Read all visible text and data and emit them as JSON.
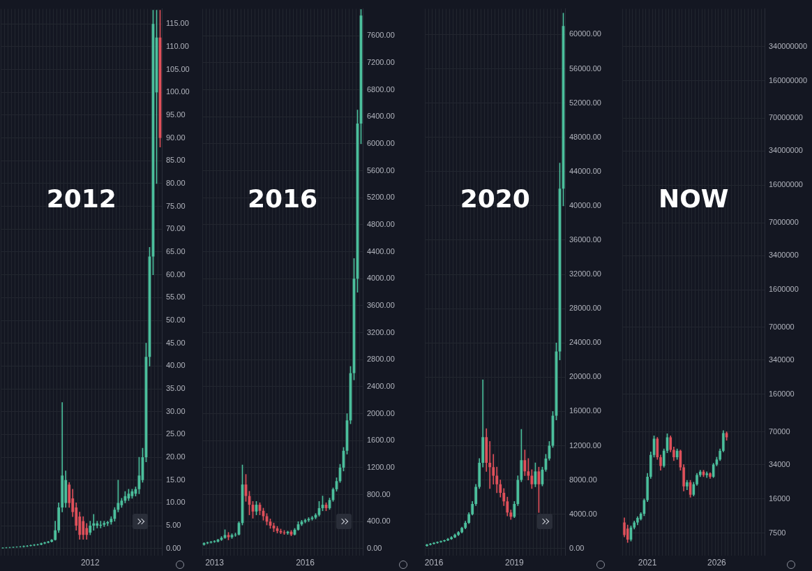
{
  "chart_data": [
    {
      "type": "candlestick",
      "title": "2012",
      "grid": true,
      "categories": [
        null,
        null,
        null,
        null,
        null,
        null,
        null,
        null,
        null,
        null,
        null,
        null,
        null,
        null,
        null,
        null,
        null,
        null,
        null,
        null,
        null,
        null,
        null,
        null,
        null,
        "2012",
        null,
        null,
        null,
        null,
        null,
        null,
        null,
        null,
        null,
        null,
        null,
        null,
        null,
        null,
        null,
        null,
        null,
        null,
        null,
        null
      ],
      "ohlc": [
        [
          0.1,
          0.2,
          0.05,
          0.15
        ],
        [
          0.15,
          0.25,
          0.1,
          0.2
        ],
        [
          0.2,
          0.3,
          0.15,
          0.25
        ],
        [
          0.25,
          0.35,
          0.2,
          0.3
        ],
        [
          0.3,
          0.4,
          0.25,
          0.35
        ],
        [
          0.35,
          0.5,
          0.3,
          0.4
        ],
        [
          0.4,
          0.6,
          0.3,
          0.5
        ],
        [
          0.5,
          0.7,
          0.4,
          0.6
        ],
        [
          0.6,
          0.8,
          0.5,
          0.7
        ],
        [
          0.7,
          0.9,
          0.6,
          0.8
        ],
        [
          0.8,
          1.0,
          0.7,
          0.9
        ],
        [
          0.9,
          1.2,
          0.8,
          1.1
        ],
        [
          1.1,
          1.4,
          1.0,
          1.3
        ],
        [
          1.3,
          1.6,
          1.2,
          1.5
        ],
        [
          1.5,
          2,
          1.4,
          1.9
        ],
        [
          1.9,
          6,
          1.8,
          4
        ],
        [
          4,
          10,
          3.5,
          9
        ],
        [
          9,
          32,
          8,
          16
        ],
        [
          10,
          17,
          9,
          15
        ],
        [
          14,
          14.5,
          9,
          10
        ],
        [
          11,
          13,
          7,
          8
        ],
        [
          9,
          10,
          4,
          5
        ],
        [
          7,
          8,
          2,
          3
        ],
        [
          6,
          7,
          2,
          3
        ],
        [
          4.5,
          5.5,
          2,
          3
        ],
        [
          3.5,
          6,
          3,
          5
        ],
        [
          5,
          7.5,
          4,
          5.5
        ],
        [
          5,
          6,
          4.5,
          5.5
        ],
        [
          5,
          6,
          4.5,
          5.2
        ],
        [
          5.2,
          6,
          4.8,
          5.6
        ],
        [
          5.5,
          6,
          5,
          5.8
        ],
        [
          5.8,
          7,
          5.3,
          6.5
        ],
        [
          6.5,
          9,
          6,
          8.5
        ],
        [
          8.5,
          15,
          8,
          10
        ],
        [
          9.5,
          11,
          9,
          10.5
        ],
        [
          10.5,
          12.5,
          10,
          11.5
        ],
        [
          11,
          13,
          10.5,
          12
        ],
        [
          11.5,
          13,
          11,
          12.5
        ],
        [
          12,
          13.5,
          11.5,
          13
        ],
        [
          13,
          20,
          12,
          16
        ],
        [
          15,
          22,
          14.5,
          20
        ],
        [
          20,
          45,
          19,
          42
        ],
        [
          42,
          66,
          40,
          64
        ],
        [
          64,
          118,
          60,
          115
        ],
        [
          100,
          118,
          80,
          112
        ],
        [
          112,
          118,
          88,
          90
        ]
      ],
      "colors": [
        "#4bbf9c",
        "#4bbf9c",
        "#4bbf9c",
        "#4bbf9c",
        "#4bbf9c",
        "#4bbf9c",
        "#4bbf9c",
        "#4bbf9c",
        "#4bbf9c",
        "#4bbf9c",
        "#4bbf9c",
        "#4bbf9c",
        "#4bbf9c",
        "#4bbf9c",
        "#4bbf9c",
        "#4bbf9c",
        "#4bbf9c",
        "#4bbf9c",
        "#4bbf9c",
        "#e0505a",
        "#e0505a",
        "#e0505a",
        "#e0505a",
        "#e0505a",
        "#e0505a",
        "#4bbf9c",
        "#4bbf9c",
        "#4bbf9c",
        "#4bbf9c",
        "#4bbf9c",
        "#4bbf9c",
        "#4bbf9c",
        "#4bbf9c",
        "#4bbf9c",
        "#4bbf9c",
        "#4bbf9c",
        "#4bbf9c",
        "#4bbf9c",
        "#4bbf9c",
        "#4bbf9c",
        "#4bbf9c",
        "#4bbf9c",
        "#4bbf9c",
        "#4bbf9c",
        "#4bbf9c",
        "#e0505a"
      ],
      "ylim": [
        -1.5,
        118.3
      ],
      "yticks": [
        {
          "value": 0,
          "label": "0.00"
        },
        {
          "value": 5,
          "label": "5.00"
        },
        {
          "value": 10,
          "label": "10.00"
        },
        {
          "value": 15,
          "label": "15.00"
        },
        {
          "value": 20,
          "label": "20.00"
        },
        {
          "value": 25,
          "label": "25.00"
        },
        {
          "value": 30,
          "label": "30.00"
        },
        {
          "value": 35,
          "label": "35.00"
        },
        {
          "value": 40,
          "label": "40.00"
        },
        {
          "value": 45,
          "label": "45.00"
        },
        {
          "value": 50,
          "label": "50.00"
        },
        {
          "value": 55,
          "label": "55.00"
        },
        {
          "value": 60,
          "label": "60.00"
        },
        {
          "value": 65,
          "label": "65.00"
        },
        {
          "value": 70,
          "label": "70.00"
        },
        {
          "value": 75,
          "label": "75.00"
        },
        {
          "value": 80,
          "label": "80.00"
        },
        {
          "value": 85,
          "label": "85.00"
        },
        {
          "value": 90,
          "label": "90.00"
        },
        {
          "value": 95,
          "label": "95.00"
        },
        {
          "value": 100,
          "label": "100.00"
        },
        {
          "value": 105,
          "label": "105.00"
        },
        {
          "value": 110,
          "label": "110.00"
        },
        {
          "value": 115,
          "label": "115.00"
        }
      ]
    },
    {
      "type": "candlestick",
      "title": "2016",
      "grid": true,
      "categories": [
        null,
        null,
        null,
        "2013",
        null,
        null,
        null,
        null,
        null,
        null,
        null,
        null,
        null,
        null,
        null,
        null,
        null,
        null,
        null,
        null,
        null,
        null,
        null,
        null,
        null,
        null,
        null,
        null,
        null,
        "2016",
        null,
        null,
        null,
        null,
        null,
        null,
        null,
        null,
        null,
        null,
        null,
        null,
        null,
        null,
        null,
        null
      ],
      "ohlc": [
        [
          60,
          90,
          50,
          80
        ],
        [
          80,
          100,
          70,
          90
        ],
        [
          90,
          110,
          80,
          100
        ],
        [
          100,
          120,
          90,
          110
        ],
        [
          105,
          140,
          95,
          130
        ],
        [
          130,
          180,
          120,
          160
        ],
        [
          160,
          280,
          150,
          200
        ],
        [
          200,
          240,
          130,
          170
        ],
        [
          170,
          220,
          150,
          200
        ],
        [
          200,
          230,
          180,
          210
        ],
        [
          210,
          400,
          200,
          380
        ],
        [
          380,
          1240,
          350,
          950
        ],
        [
          950,
          1100,
          700,
          780
        ],
        [
          780,
          850,
          500,
          650
        ],
        [
          650,
          700,
          450,
          550
        ],
        [
          550,
          700,
          500,
          650
        ],
        [
          650,
          680,
          500,
          560
        ],
        [
          560,
          600,
          420,
          480
        ],
        [
          480,
          520,
          350,
          400
        ],
        [
          400,
          440,
          300,
          340
        ],
        [
          340,
          380,
          250,
          300
        ],
        [
          300,
          330,
          230,
          260
        ],
        [
          260,
          290,
          220,
          240
        ],
        [
          240,
          270,
          210,
          230
        ],
        [
          230,
          260,
          210,
          250
        ],
        [
          250,
          270,
          190,
          210
        ],
        [
          210,
          300,
          200,
          280
        ],
        [
          280,
          400,
          270,
          360
        ],
        [
          360,
          420,
          340,
          400
        ],
        [
          400,
          440,
          380,
          420
        ],
        [
          420,
          460,
          400,
          440
        ],
        [
          440,
          480,
          420,
          460
        ],
        [
          460,
          520,
          440,
          500
        ],
        [
          500,
          700,
          480,
          600
        ],
        [
          600,
          780,
          560,
          650
        ],
        [
          650,
          680,
          560,
          600
        ],
        [
          600,
          750,
          580,
          720
        ],
        [
          720,
          900,
          700,
          880
        ],
        [
          880,
          1050,
          850,
          1000
        ],
        [
          1000,
          1250,
          980,
          1200
        ],
        [
          1200,
          1500,
          1150,
          1450
        ],
        [
          1450,
          2000,
          1400,
          1900
        ],
        [
          1900,
          2700,
          1850,
          2600
        ],
        [
          2600,
          4300,
          2500,
          4000
        ],
        [
          4000,
          6500,
          3800,
          6300
        ],
        [
          6300,
          7990,
          6000,
          7900
        ]
      ],
      "colors": [
        "#4bbf9c",
        "#4bbf9c",
        "#4bbf9c",
        "#4bbf9c",
        "#4bbf9c",
        "#4bbf9c",
        "#4bbf9c",
        "#e0505a",
        "#4bbf9c",
        "#4bbf9c",
        "#4bbf9c",
        "#4bbf9c",
        "#e0505a",
        "#e0505a",
        "#e0505a",
        "#4bbf9c",
        "#e0505a",
        "#e0505a",
        "#e0505a",
        "#e0505a",
        "#e0505a",
        "#e0505a",
        "#e0505a",
        "#e0505a",
        "#4bbf9c",
        "#e0505a",
        "#4bbf9c",
        "#4bbf9c",
        "#4bbf9c",
        "#4bbf9c",
        "#4bbf9c",
        "#4bbf9c",
        "#4bbf9c",
        "#4bbf9c",
        "#4bbf9c",
        "#e0505a",
        "#4bbf9c",
        "#4bbf9c",
        "#4bbf9c",
        "#4bbf9c",
        "#4bbf9c",
        "#4bbf9c",
        "#4bbf9c",
        "#4bbf9c",
        "#4bbf9c",
        "#4bbf9c"
      ],
      "ylim": [
        -100,
        8000
      ],
      "yticks": [
        {
          "value": 0,
          "label": "0.00"
        },
        {
          "value": 400,
          "label": "400.00"
        },
        {
          "value": 800,
          "label": "800.00"
        },
        {
          "value": 1200,
          "label": "1200.00"
        },
        {
          "value": 1600,
          "label": "1600.00"
        },
        {
          "value": 2000,
          "label": "2000.00"
        },
        {
          "value": 2400,
          "label": "2400.00"
        },
        {
          "value": 2800,
          "label": "2800.00"
        },
        {
          "value": 3200,
          "label": "3200.00"
        },
        {
          "value": 3600,
          "label": "3600.00"
        },
        {
          "value": 4000,
          "label": "4000.00"
        },
        {
          "value": 4400,
          "label": "4400.00"
        },
        {
          "value": 4800,
          "label": "4800.00"
        },
        {
          "value": 5200,
          "label": "5200.00"
        },
        {
          "value": 5600,
          "label": "5600.00"
        },
        {
          "value": 6000,
          "label": "6000.00"
        },
        {
          "value": 6400,
          "label": "6400.00"
        },
        {
          "value": 6800,
          "label": "6800.00"
        },
        {
          "value": 7200,
          "label": "7200.00"
        },
        {
          "value": 7600,
          "label": "7600.00"
        }
      ]
    },
    {
      "type": "candlestick",
      "title": "2020",
      "grid": true,
      "categories": [
        null,
        null,
        "2016",
        null,
        null,
        null,
        null,
        null,
        null,
        null,
        null,
        null,
        null,
        null,
        null,
        null,
        null,
        null,
        null,
        null,
        null,
        null,
        null,
        null,
        null,
        "2019",
        null,
        null,
        null,
        null,
        null,
        null,
        null,
        null,
        null,
        null,
        null,
        null,
        null,
        null
      ],
      "ohlc": [
        [
          300,
          500,
          250,
          450
        ],
        [
          450,
          600,
          400,
          550
        ],
        [
          550,
          700,
          500,
          650
        ],
        [
          650,
          800,
          600,
          750
        ],
        [
          750,
          900,
          700,
          850
        ],
        [
          850,
          1000,
          800,
          950
        ],
        [
          950,
          1200,
          900,
          1100
        ],
        [
          1100,
          1400,
          1050,
          1300
        ],
        [
          1300,
          1700,
          1250,
          1600
        ],
        [
          1600,
          2000,
          1500,
          1900
        ],
        [
          1900,
          2500,
          1800,
          2400
        ],
        [
          2400,
          3200,
          2300,
          3000
        ],
        [
          3000,
          4200,
          2900,
          4000
        ],
        [
          4000,
          5500,
          3900,
          5200
        ],
        [
          5200,
          7500,
          5000,
          7200
        ],
        [
          7200,
          10500,
          7000,
          10000
        ],
        [
          10000,
          19700,
          9500,
          13000
        ],
        [
          13000,
          14000,
          9000,
          10000
        ],
        [
          10000,
          12500,
          7000,
          9500
        ],
        [
          9500,
          11000,
          7500,
          8500
        ],
        [
          8500,
          9500,
          6500,
          7500
        ],
        [
          7500,
          8000,
          6000,
          6500
        ],
        [
          6500,
          7000,
          5000,
          5500
        ],
        [
          5500,
          6000,
          3800,
          4200
        ],
        [
          4200,
          4500,
          3400,
          3700
        ],
        [
          3700,
          5500,
          3600,
          5200
        ],
        [
          5200,
          8500,
          5000,
          8000
        ],
        [
          8000,
          13900,
          7800,
          10300
        ],
        [
          10300,
          11500,
          8500,
          9000
        ],
        [
          9000,
          10500,
          8000,
          8500
        ],
        [
          8500,
          9200,
          7000,
          7500
        ],
        [
          7500,
          10000,
          7200,
          9000
        ],
        [
          9000,
          9500,
          4200,
          7500
        ],
        [
          7500,
          9500,
          7300,
          9200
        ],
        [
          9200,
          11000,
          9000,
          10500
        ],
        [
          10500,
          12500,
          10300,
          12000
        ],
        [
          12000,
          16000,
          11800,
          15500
        ],
        [
          15500,
          24000,
          15000,
          23000
        ],
        [
          23000,
          45000,
          22000,
          42000
        ],
        [
          42000,
          62500,
          40000,
          61000
        ]
      ],
      "colors": [
        "#4bbf9c",
        "#4bbf9c",
        "#4bbf9c",
        "#4bbf9c",
        "#4bbf9c",
        "#4bbf9c",
        "#4bbf9c",
        "#4bbf9c",
        "#4bbf9c",
        "#4bbf9c",
        "#4bbf9c",
        "#4bbf9c",
        "#4bbf9c",
        "#4bbf9c",
        "#4bbf9c",
        "#4bbf9c",
        "#4bbf9c",
        "#e0505a",
        "#e0505a",
        "#e0505a",
        "#e0505a",
        "#e0505a",
        "#e0505a",
        "#e0505a",
        "#e0505a",
        "#4bbf9c",
        "#4bbf9c",
        "#4bbf9c",
        "#e0505a",
        "#e0505a",
        "#e0505a",
        "#4bbf9c",
        "#e0505a",
        "#4bbf9c",
        "#4bbf9c",
        "#4bbf9c",
        "#4bbf9c",
        "#4bbf9c",
        "#4bbf9c",
        "#4bbf9c"
      ],
      "ylim": [
        -800,
        63000
      ],
      "yticks": [
        {
          "value": 0,
          "label": "0.00"
        },
        {
          "value": 4000,
          "label": "4000.00"
        },
        {
          "value": 8000,
          "label": "8000.00"
        },
        {
          "value": 12000,
          "label": "12000.00"
        },
        {
          "value": 16000,
          "label": "16000.00"
        },
        {
          "value": 20000,
          "label": "20000.00"
        },
        {
          "value": 24000,
          "label": "24000.00"
        },
        {
          "value": 28000,
          "label": "28000.00"
        },
        {
          "value": 32000,
          "label": "32000.00"
        },
        {
          "value": 36000,
          "label": "36000.00"
        },
        {
          "value": 40000,
          "label": "40000.00"
        },
        {
          "value": 44000,
          "label": "44000.00"
        },
        {
          "value": 48000,
          "label": "48000.00"
        },
        {
          "value": 52000,
          "label": "52000.00"
        },
        {
          "value": 56000,
          "label": "56000.00"
        },
        {
          "value": 60000,
          "label": "60000.00"
        }
      ]
    },
    {
      "type": "candlestick",
      "title": "NOW",
      "grid": true,
      "log": true,
      "categories": [
        null,
        null,
        null,
        null,
        null,
        null,
        null,
        "2021",
        null,
        null,
        null,
        null,
        null,
        null,
        null,
        null,
        null,
        null,
        null,
        null,
        null,
        null,
        null,
        null,
        null,
        null,
        null,
        null,
        "2026",
        null,
        null,
        null,
        null,
        null,
        null,
        null,
        null,
        null,
        null,
        null,
        null,
        null,
        null
      ],
      "ohlc": [
        [
          9500,
          10500,
          6900,
          7200
        ],
        [
          8300,
          9000,
          6100,
          6500
        ],
        [
          6500,
          8800,
          6300,
          8500
        ],
        [
          8500,
          9800,
          8200,
          9500
        ],
        [
          9500,
          10800,
          9000,
          10500
        ],
        [
          10200,
          11800,
          10000,
          11500
        ],
        [
          11500,
          16000,
          11000,
          15500
        ],
        [
          15500,
          28000,
          15000,
          26000
        ],
        [
          26000,
          45000,
          25000,
          42000
        ],
        [
          42000,
          64000,
          40000,
          60000
        ],
        [
          60000,
          62000,
          38000,
          40000
        ],
        [
          40000,
          42000,
          30000,
          33000
        ],
        [
          33000,
          48000,
          32000,
          46000
        ],
        [
          46000,
          67000,
          44000,
          62000
        ],
        [
          62000,
          64000,
          45000,
          47000
        ],
        [
          47000,
          50000,
          37000,
          40000
        ],
        [
          40000,
          48000,
          38000,
          46000
        ],
        [
          46000,
          47000,
          30000,
          32000
        ],
        [
          32000,
          34000,
          19000,
          21000
        ],
        [
          21000,
          24000,
          19500,
          23000
        ],
        [
          23000,
          24000,
          16500,
          17500
        ],
        [
          17500,
          23000,
          17000,
          22000
        ],
        [
          22000,
          28000,
          21500,
          27000
        ],
        [
          27000,
          30000,
          26000,
          29000
        ],
        [
          29000,
          30000,
          26000,
          27000
        ],
        [
          27000,
          29000,
          25500,
          28000
        ],
        [
          28000,
          28500,
          25000,
          26000
        ],
        [
          26000,
          35000,
          25500,
          34000
        ],
        [
          34000,
          40000,
          33000,
          38000
        ],
        [
          38000,
          48000,
          37000,
          46000
        ],
        [
          46000,
          72000,
          45000,
          68000
        ],
        [
          68000,
          70000,
          58000,
          62000
        ],
        null,
        null,
        null,
        null,
        null,
        null,
        null,
        null,
        null,
        null,
        null
      ],
      "colors": [
        "#e0505a",
        "#e0505a",
        "#4bbf9c",
        "#4bbf9c",
        "#4bbf9c",
        "#4bbf9c",
        "#4bbf9c",
        "#4bbf9c",
        "#4bbf9c",
        "#4bbf9c",
        "#e0505a",
        "#e0505a",
        "#4bbf9c",
        "#4bbf9c",
        "#e0505a",
        "#e0505a",
        "#4bbf9c",
        "#e0505a",
        "#e0505a",
        "#4bbf9c",
        "#e0505a",
        "#4bbf9c",
        "#4bbf9c",
        "#4bbf9c",
        "#e0505a",
        "#4bbf9c",
        "#e0505a",
        "#4bbf9c",
        "#4bbf9c",
        "#4bbf9c",
        "#4bbf9c",
        "#e0505a",
        null,
        null,
        null,
        null,
        null,
        null,
        null,
        null,
        null,
        null,
        null
      ],
      "ylim": [
        4600,
        780000000
      ],
      "yticks": [
        7500,
        16000,
        34000,
        70000,
        160000,
        340000,
        700000,
        1600000,
        3400000,
        7000000,
        16000000,
        34000000,
        70000000,
        160000000,
        340000000
      ]
    }
  ]
}
